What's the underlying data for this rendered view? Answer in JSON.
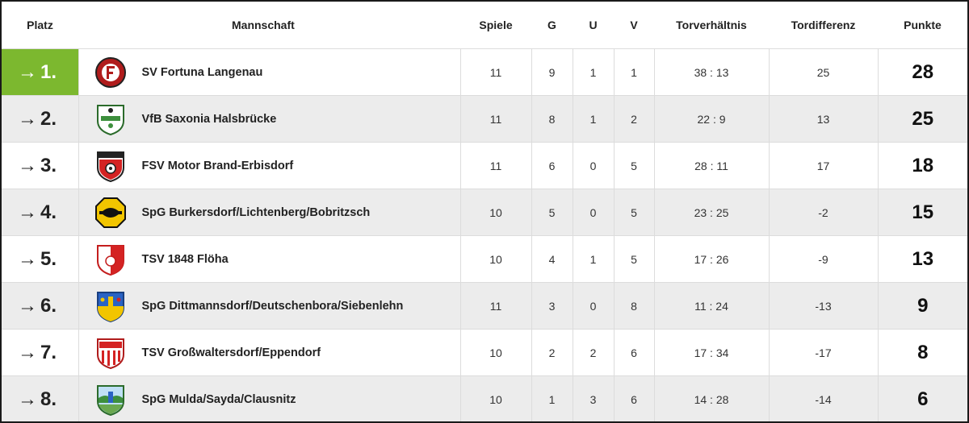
{
  "table": {
    "headers": {
      "platz": "Platz",
      "mannschaft": "Mannschaft",
      "spiele": "Spiele",
      "g": "G",
      "u": "U",
      "v": "V",
      "torverhaeltnis": "Torverhältnis",
      "tordifferenz": "Tordifferenz",
      "punkte": "Punkte"
    },
    "colors": {
      "leader_green": "#7cb82f",
      "stripe_gray": "#ececec",
      "border": "#dcdcdc"
    },
    "rows": [
      {
        "arrow": "→",
        "platz": "1.",
        "team": "SV Fortuna Langenau",
        "logo_icon": "club-crest-red-circle-icon",
        "spiele": "11",
        "g": "9",
        "u": "1",
        "v": "1",
        "tore": "38 : 13",
        "diff": "25",
        "punkte": "28"
      },
      {
        "arrow": "→",
        "platz": "2.",
        "team": "VfB Saxonia Halsbrücke",
        "logo_icon": "club-crest-green-shield-icon",
        "spiele": "11",
        "g": "8",
        "u": "1",
        "v": "2",
        "tore": "22 : 9",
        "diff": "13",
        "punkte": "25"
      },
      {
        "arrow": "→",
        "platz": "3.",
        "team": "FSV Motor Brand-Erbisdorf",
        "logo_icon": "club-crest-red-ball-shield-icon",
        "spiele": "11",
        "g": "6",
        "u": "0",
        "v": "5",
        "tore": "28 : 11",
        "diff": "17",
        "punkte": "18"
      },
      {
        "arrow": "→",
        "platz": "4.",
        "team": "SpG Burkersdorf/Lichtenberg/Bobritzsch",
        "logo_icon": "club-crest-black-yellow-octagon-icon",
        "spiele": "10",
        "g": "5",
        "u": "0",
        "v": "5",
        "tore": "23 : 25",
        "diff": "-2",
        "punkte": "15"
      },
      {
        "arrow": "→",
        "platz": "5.",
        "team": "TSV 1848 Flöha",
        "logo_icon": "club-crest-red-white-shield-icon",
        "spiele": "10",
        "g": "4",
        "u": "1",
        "v": "5",
        "tore": "17 : 26",
        "diff": "-9",
        "punkte": "13"
      },
      {
        "arrow": "→",
        "platz": "6.",
        "team": "SpG Dittmannsdorf/Deutschenbora/Siebenlehn",
        "logo_icon": "club-crest-blue-yellow-shield-icon",
        "spiele": "11",
        "g": "3",
        "u": "0",
        "v": "8",
        "tore": "11 : 24",
        "diff": "-13",
        "punkte": "9"
      },
      {
        "arrow": "→",
        "platz": "7.",
        "team": "TSV Großwaltersdorf/Eppendorf",
        "logo_icon": "club-crest-red-stripes-shield-icon",
        "spiele": "10",
        "g": "2",
        "u": "2",
        "v": "6",
        "tore": "17 : 34",
        "diff": "-17",
        "punkte": "8"
      },
      {
        "arrow": "→",
        "platz": "8.",
        "team": "SpG Mulda/Sayda/Clausnitz",
        "logo_icon": "club-crest-landscape-shield-icon",
        "spiele": "10",
        "g": "1",
        "u": "3",
        "v": "6",
        "tore": "14 : 28",
        "diff": "-14",
        "punkte": "6"
      }
    ]
  }
}
